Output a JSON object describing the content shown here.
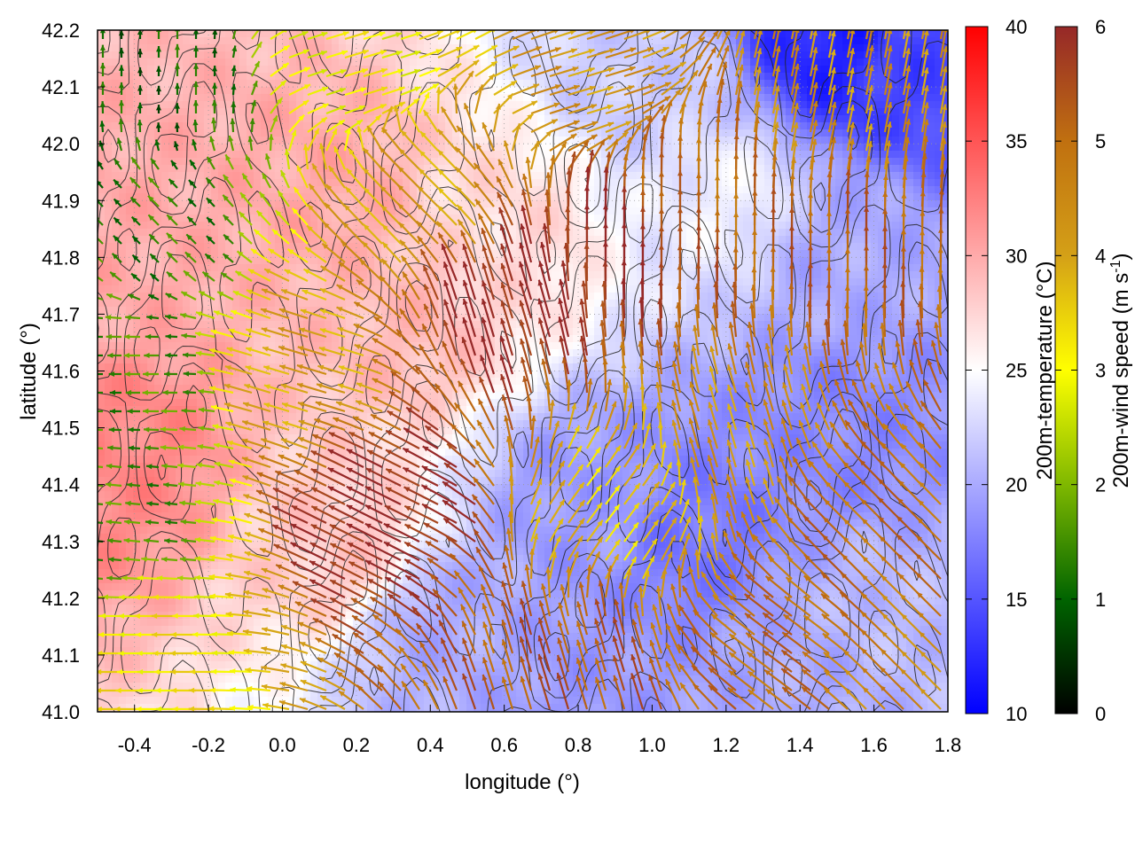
{
  "chart_data": {
    "type": "heatmap",
    "title": "",
    "xlabel": "longitude (°)",
    "ylabel": "latitude (°)",
    "xlim": [
      -0.5,
      1.8
    ],
    "ylim": [
      41.0,
      42.2
    ],
    "x_ticks": [
      "-0.4",
      "-0.2",
      "0.0",
      "0.2",
      "0.4",
      "0.6",
      "0.8",
      "1.0",
      "1.2",
      "1.4",
      "1.6",
      "1.8"
    ],
    "y_ticks": [
      "41.0",
      "41.1",
      "41.2",
      "41.3",
      "41.4",
      "41.5",
      "41.6",
      "41.7",
      "41.8",
      "41.9",
      "42.0",
      "42.1",
      "42.2"
    ],
    "grid": true,
    "layers": [
      "temperature field (color map)",
      "terrain contours (black lines)",
      "wind vectors (arrows colored by speed)"
    ],
    "temperature_colorbar": {
      "label": "200m-temperature (°C)",
      "range": [
        10,
        40
      ],
      "ticks": [
        "10",
        "15",
        "20",
        "25",
        "30",
        "35",
        "40"
      ],
      "colors": [
        "#0000ff",
        "#ffffff",
        "#ff0000"
      ]
    },
    "wind_colorbar": {
      "label": "200m-wind speed (m s-1)",
      "label_main": "200m-wind speed (m s",
      "label_sup": "-1",
      "label_end": ")",
      "range": [
        0,
        6
      ],
      "ticks": [
        "0",
        "1",
        "2",
        "3",
        "4",
        "5",
        "6"
      ],
      "colors": [
        "#000000",
        "#006400",
        "#7fb800",
        "#ffff00",
        "#d4a017",
        "#c07010",
        "#962828"
      ]
    },
    "temperature_regions": [
      {
        "lon": -0.5,
        "lat": 41.8,
        "value": 30
      },
      {
        "lon": -0.45,
        "lat": 41.45,
        "value": 32
      },
      {
        "lon": 0.1,
        "lat": 41.9,
        "value": 30
      },
      {
        "lon": 0.3,
        "lat": 41.7,
        "value": 29
      },
      {
        "lon": 0.15,
        "lat": 41.3,
        "value": 28
      },
      {
        "lon": 0.6,
        "lat": 41.85,
        "value": 27
      },
      {
        "lon": 1.0,
        "lat": 42.1,
        "value": 22
      },
      {
        "lon": 1.5,
        "lat": 42.18,
        "value": 12
      },
      {
        "lon": 1.7,
        "lat": 42.15,
        "value": 14
      },
      {
        "lon": 1.2,
        "lat": 41.9,
        "value": 24
      },
      {
        "lon": 1.5,
        "lat": 41.8,
        "value": 20
      },
      {
        "lon": 1.5,
        "lat": 41.5,
        "value": 18
      },
      {
        "lon": 1.1,
        "lat": 41.3,
        "value": 17
      },
      {
        "lon": 0.85,
        "lat": 41.35,
        "value": 19
      },
      {
        "lon": 0.45,
        "lat": 41.15,
        "value": 20
      },
      {
        "lon": 0.85,
        "lat": 41.05,
        "value": 19
      },
      {
        "lon": 1.6,
        "lat": 41.15,
        "value": 21
      },
      {
        "lon": 1.45,
        "lat": 41.1,
        "value": 20
      }
    ],
    "wind_regions": [
      {
        "lon": -0.35,
        "lat": 42.1,
        "u": 0.0,
        "v": 1.0,
        "speed": 1.0
      },
      {
        "lon": -0.35,
        "lat": 41.85,
        "u": -0.7,
        "v": 0.7,
        "speed": 1.3
      },
      {
        "lon": -0.4,
        "lat": 41.6,
        "u": -1.0,
        "v": 0.0,
        "speed": 1.5
      },
      {
        "lon": -0.45,
        "lat": 41.35,
        "u": -1.0,
        "v": 0.1,
        "speed": 1.5
      },
      {
        "lon": -0.35,
        "lat": 41.1,
        "u": -1.0,
        "v": 0.0,
        "speed": 3.2
      },
      {
        "lon": 0.1,
        "lat": 41.6,
        "u": -1.0,
        "v": 0.3,
        "speed": 4.0
      },
      {
        "lon": 0.2,
        "lat": 42.15,
        "u": 1.0,
        "v": 0.3,
        "speed": 3.0
      },
      {
        "lon": 0.4,
        "lat": 41.9,
        "u": -0.8,
        "v": 0.8,
        "speed": 4.0
      },
      {
        "lon": 0.3,
        "lat": 41.35,
        "u": -1.0,
        "v": 0.5,
        "speed": 6.0
      },
      {
        "lon": 0.6,
        "lat": 41.7,
        "u": -0.3,
        "v": 1.0,
        "speed": 6.0
      },
      {
        "lon": 0.9,
        "lat": 41.8,
        "u": 0.0,
        "v": 1.0,
        "speed": 6.0
      },
      {
        "lon": 1.1,
        "lat": 41.9,
        "u": 0.0,
        "v": 1.0,
        "speed": 5.0
      },
      {
        "lon": 0.8,
        "lat": 42.1,
        "u": 1.0,
        "v": 0.3,
        "speed": 4.2
      },
      {
        "lon": 1.5,
        "lat": 42.05,
        "u": 0.2,
        "v": 1.0,
        "speed": 4.2
      },
      {
        "lon": 1.5,
        "lat": 41.8,
        "u": 0.0,
        "v": 1.0,
        "speed": 5.2
      },
      {
        "lon": 0.9,
        "lat": 41.35,
        "u": 0.6,
        "v": 0.8,
        "speed": 3.5
      },
      {
        "lon": 1.2,
        "lat": 41.45,
        "u": -0.3,
        "v": 1.0,
        "speed": 4.2
      },
      {
        "lon": 1.6,
        "lat": 41.3,
        "u": -0.7,
        "v": 0.7,
        "speed": 5.0
      },
      {
        "lon": 1.4,
        "lat": 41.1,
        "u": -0.8,
        "v": 0.6,
        "speed": 5.0
      },
      {
        "lon": 0.8,
        "lat": 41.05,
        "u": -0.3,
        "v": 1.0,
        "speed": 5.3
      },
      {
        "lon": 1.7,
        "lat": 41.05,
        "u": -0.7,
        "v": 0.7,
        "speed": 4.5
      }
    ]
  }
}
